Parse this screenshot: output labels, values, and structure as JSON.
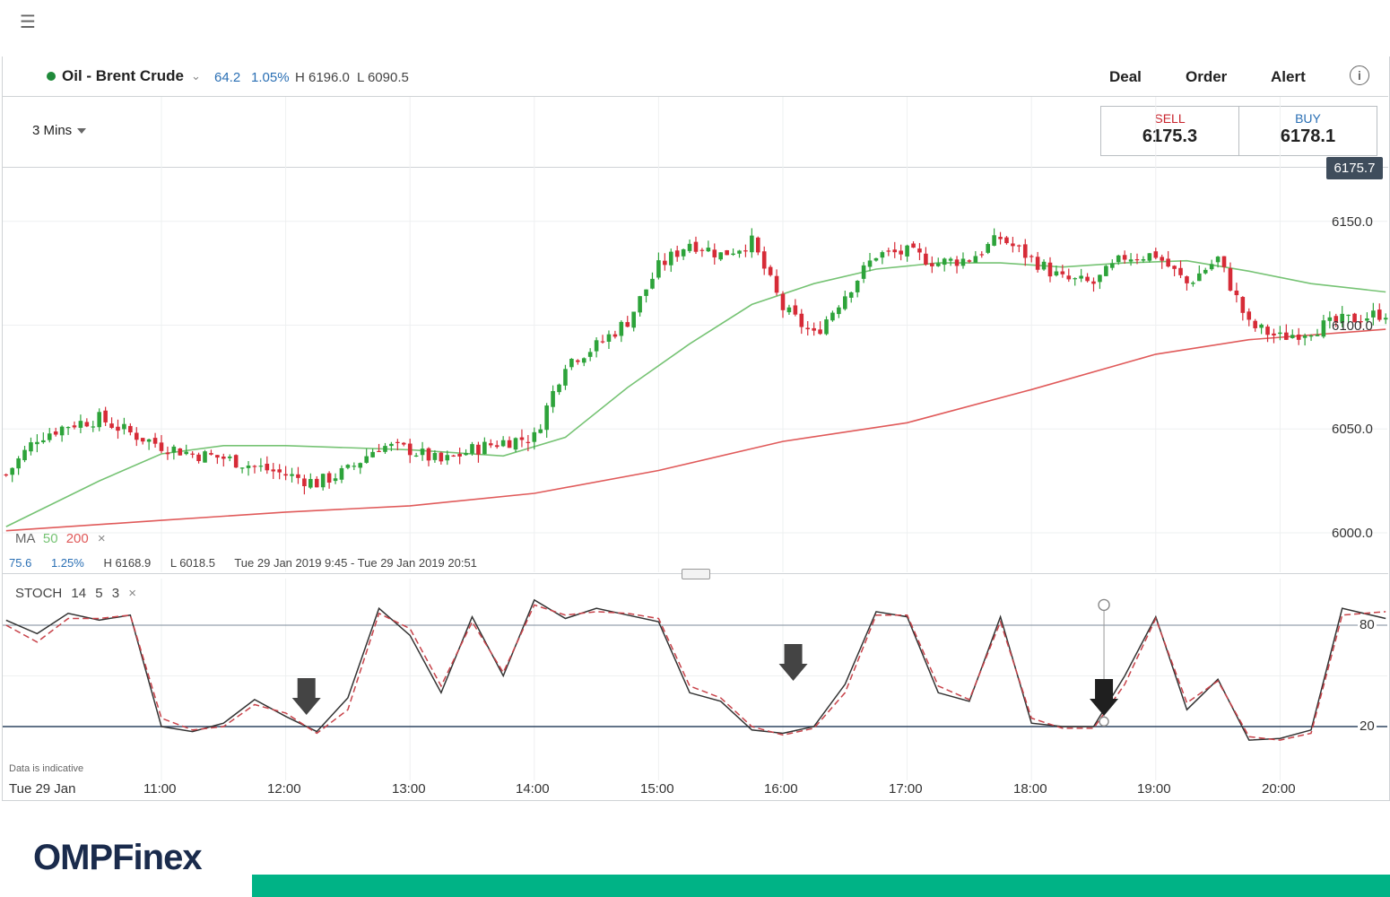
{
  "header": {
    "instrument": "Oil - Brent Crude",
    "change_points": "64.2",
    "change_percent": "1.05%",
    "high": "H 6196.0",
    "low": "L 6090.5",
    "nav": [
      "Deal",
      "Order",
      "Alert"
    ],
    "info_glyph": "i",
    "menu_glyph": "☰",
    "chevron_glyph": "⌄"
  },
  "timeframe": "3 Mins",
  "trade": {
    "sell_label": "SELL",
    "sell_price": "6175.3",
    "buy_label": "BUY",
    "buy_price": "6178.1"
  },
  "current_price": "6175.7",
  "price_axis": [
    {
      "label": "6150.0",
      "value": 6150
    },
    {
      "label": "6100.0",
      "value": 6100
    },
    {
      "label": "6050.0",
      "value": 6050
    },
    {
      "label": "6000.0",
      "value": 6000
    }
  ],
  "ma_legend": {
    "name": "MA",
    "fast": "50",
    "slow": "200",
    "remove": "×"
  },
  "stats": {
    "points": "75.6",
    "percent": "1.25%",
    "high": "H 6168.9",
    "low": "L 6018.5",
    "range": "Tue 29 Jan 2019 9:45 - Tue 29 Jan 2019 20:51"
  },
  "stoch_legend": {
    "name": "STOCH",
    "k": "14",
    "smooth": "5",
    "d": "3",
    "remove": "×"
  },
  "stoch_axis": [
    {
      "label": "80",
      "value": 80
    },
    {
      "label": "20",
      "value": 20
    }
  ],
  "disclaimer": "Data is indicative",
  "time_axis": {
    "date_label": "Tue 29 Jan",
    "ticks": [
      "11:00",
      "12:00",
      "13:00",
      "14:00",
      "15:00",
      "16:00",
      "17:00",
      "18:00",
      "19:00",
      "20:00"
    ]
  },
  "logo": "OMPFinex",
  "colors": {
    "bull": "#2da33a",
    "bear": "#d62b37",
    "ma50": "#76c374",
    "ma200": "#e05a5a",
    "stoch_k": "#333333",
    "stoch_d": "#c8434a",
    "accent": "#00b386",
    "logo": "#1a2b4c"
  },
  "chart_data": [
    {
      "type": "candlestick",
      "ylim": [
        5990,
        6185
      ],
      "x_start": "09:45",
      "x_end": "20:51",
      "interval_minutes": 3,
      "close_anchors": [
        [
          "09:45",
          6028
        ],
        [
          "10:00",
          6046
        ],
        [
          "10:15",
          6052
        ],
        [
          "10:30",
          6055
        ],
        [
          "10:45",
          6048
        ],
        [
          "11:00",
          6042
        ],
        [
          "11:15",
          6038
        ],
        [
          "11:30",
          6036
        ],
        [
          "11:45",
          6032
        ],
        [
          "12:00",
          6028
        ],
        [
          "12:15",
          6024
        ],
        [
          "12:30",
          6030
        ],
        [
          "12:45",
          6042
        ],
        [
          "13:00",
          6040
        ],
        [
          "13:15",
          6034
        ],
        [
          "13:30",
          6040
        ],
        [
          "13:45",
          6044
        ],
        [
          "14:00",
          6046
        ],
        [
          "14:15",
          6082
        ],
        [
          "14:30",
          6090
        ],
        [
          "14:45",
          6102
        ],
        [
          "15:00",
          6128
        ],
        [
          "15:15",
          6140
        ],
        [
          "15:30",
          6134
        ],
        [
          "15:45",
          6140
        ],
        [
          "16:00",
          6108
        ],
        [
          "16:15",
          6095
        ],
        [
          "16:30",
          6115
        ],
        [
          "16:45",
          6134
        ],
        [
          "17:00",
          6135
        ],
        [
          "17:15",
          6130
        ],
        [
          "17:30",
          6132
        ],
        [
          "17:45",
          6142
        ],
        [
          "18:00",
          6132
        ],
        [
          "18:15",
          6122
        ],
        [
          "18:30",
          6120
        ],
        [
          "18:45",
          6133
        ],
        [
          "19:00",
          6134
        ],
        [
          "19:15",
          6120
        ],
        [
          "19:30",
          6132
        ],
        [
          "19:45",
          6100
        ],
        [
          "20:00",
          6094
        ],
        [
          "20:15",
          6098
        ],
        [
          "20:30",
          6102
        ],
        [
          "20:51",
          6106
        ]
      ],
      "series": [
        {
          "name": "MA 50",
          "points": [
            [
              "09:45",
              6003
            ],
            [
              "10:30",
              6025
            ],
            [
              "11:00",
              6038
            ],
            [
              "11:30",
              6042
            ],
            [
              "12:00",
              6042
            ],
            [
              "13:00",
              6040
            ],
            [
              "13:45",
              6037
            ],
            [
              "14:15",
              6046
            ],
            [
              "14:45",
              6070
            ],
            [
              "15:15",
              6091
            ],
            [
              "15:45",
              6110
            ],
            [
              "16:15",
              6120
            ],
            [
              "16:45",
              6127
            ],
            [
              "17:15",
              6130
            ],
            [
              "17:45",
              6130
            ],
            [
              "18:15",
              6128
            ],
            [
              "18:45",
              6130
            ],
            [
              "19:15",
              6131
            ],
            [
              "19:45",
              6126
            ],
            [
              "20:15",
              6120
            ],
            [
              "20:51",
              6116
            ]
          ]
        },
        {
          "name": "MA 200",
          "points": [
            [
              "09:45",
              6001
            ],
            [
              "11:00",
              6006
            ],
            [
              "12:00",
              6010
            ],
            [
              "13:00",
              6013
            ],
            [
              "14:00",
              6019
            ],
            [
              "15:00",
              6030
            ],
            [
              "16:00",
              6044
            ],
            [
              "17:00",
              6053
            ],
            [
              "18:00",
              6069
            ],
            [
              "19:00",
              6086
            ],
            [
              "19:45",
              6093
            ],
            [
              "20:51",
              6098
            ]
          ]
        }
      ]
    },
    {
      "type": "line",
      "title": "STOCH 14 5 3",
      "ylim": [
        0,
        100
      ],
      "series": [
        {
          "name": "%K",
          "points": [
            [
              "09:45",
              83
            ],
            [
              "10:00",
              75
            ],
            [
              "10:15",
              87
            ],
            [
              "10:30",
              83
            ],
            [
              "10:45",
              86
            ],
            [
              "11:00",
              20
            ],
            [
              "11:15",
              17
            ],
            [
              "11:30",
              22
            ],
            [
              "11:45",
              36
            ],
            [
              "12:00",
              26
            ],
            [
              "12:15",
              17
            ],
            [
              "12:30",
              37
            ],
            [
              "12:45",
              90
            ],
            [
              "13:00",
              74
            ],
            [
              "13:15",
              40
            ],
            [
              "13:30",
              85
            ],
            [
              "13:45",
              50
            ],
            [
              "14:00",
              95
            ],
            [
              "14:15",
              84
            ],
            [
              "14:30",
              90
            ],
            [
              "14:45",
              86
            ],
            [
              "15:00",
              82
            ],
            [
              "15:15",
              40
            ],
            [
              "15:30",
              35
            ],
            [
              "15:45",
              18
            ],
            [
              "16:00",
              16
            ],
            [
              "16:15",
              20
            ],
            [
              "16:30",
              45
            ],
            [
              "16:45",
              88
            ],
            [
              "17:00",
              85
            ],
            [
              "17:15",
              40
            ],
            [
              "17:30",
              35
            ],
            [
              "17:45",
              85
            ],
            [
              "18:00",
              22
            ],
            [
              "18:15",
              20
            ],
            [
              "18:30",
              20
            ],
            [
              "18:45",
              50
            ],
            [
              "19:00",
              85
            ],
            [
              "19:15",
              30
            ],
            [
              "19:30",
              48
            ],
            [
              "19:45",
              12
            ],
            [
              "20:00",
              13
            ],
            [
              "20:15",
              18
            ],
            [
              "20:30",
              90
            ],
            [
              "20:51",
              84
            ]
          ]
        },
        {
          "name": "%D",
          "points": [
            [
              "09:45",
              80
            ],
            [
              "10:00",
              70
            ],
            [
              "10:15",
              84
            ],
            [
              "10:30",
              84
            ],
            [
              "10:45",
              86
            ],
            [
              "11:00",
              25
            ],
            [
              "11:15",
              18
            ],
            [
              "11:30",
              20
            ],
            [
              "11:45",
              33
            ],
            [
              "12:00",
              28
            ],
            [
              "12:15",
              16
            ],
            [
              "12:30",
              30
            ],
            [
              "12:45",
              87
            ],
            [
              "13:00",
              78
            ],
            [
              "13:15",
              44
            ],
            [
              "13:30",
              82
            ],
            [
              "13:45",
              52
            ],
            [
              "14:00",
              92
            ],
            [
              "14:15",
              86
            ],
            [
              "14:30",
              88
            ],
            [
              "14:45",
              87
            ],
            [
              "15:00",
              84
            ],
            [
              "15:15",
              44
            ],
            [
              "15:30",
              37
            ],
            [
              "15:45",
              20
            ],
            [
              "16:00",
              15
            ],
            [
              "16:15",
              19
            ],
            [
              "16:30",
              40
            ],
            [
              "16:45",
              86
            ],
            [
              "17:00",
              86
            ],
            [
              "17:15",
              44
            ],
            [
              "17:30",
              36
            ],
            [
              "17:45",
              82
            ],
            [
              "18:00",
              25
            ],
            [
              "18:15",
              19
            ],
            [
              "18:30",
              19
            ],
            [
              "18:45",
              45
            ],
            [
              "19:00",
              84
            ],
            [
              "19:15",
              34
            ],
            [
              "19:30",
              47
            ],
            [
              "19:45",
              14
            ],
            [
              "20:00",
              12
            ],
            [
              "20:15",
              16
            ],
            [
              "20:30",
              86
            ],
            [
              "20:51",
              88
            ]
          ]
        }
      ],
      "reference_lines": [
        80,
        20
      ],
      "annotations": [
        "12:10",
        "16:05",
        "18:35"
      ],
      "marker": {
        "time": "18:35",
        "from": 92,
        "to": 23
      }
    }
  ]
}
